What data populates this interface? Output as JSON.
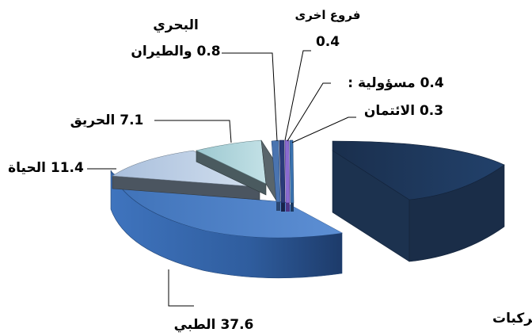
{
  "chart_data": {
    "type": "pie",
    "style": "3d-exploded",
    "slices": [
      {
        "key": "vehicles",
        "label": "المركبات",
        "value": 42,
        "value_text": "42",
        "color": "#1b3150"
      },
      {
        "key": "medical",
        "label": "الطبي",
        "value": 37.6,
        "value_text": "37.6",
        "color": "#4a7cc4"
      },
      {
        "key": "life",
        "label": "الحياة",
        "value": 11.4,
        "value_text": "11.4",
        "color": "#b9cce4"
      },
      {
        "key": "fire",
        "label": "الحريق",
        "value": 7.1,
        "value_text": "7.1",
        "color": "#a6cfd6"
      },
      {
        "key": "marine",
        "label_line1": "البحري",
        "label_line2": "والطيران",
        "value": 0.8,
        "value_text": "0.8",
        "color": "#4a74b0"
      },
      {
        "key": "other",
        "label": "فروع اخرى",
        "value": 0.4,
        "value_text": "0.4",
        "color": "#1f2f6a"
      },
      {
        "key": "liability",
        "label": "مسؤولية :",
        "value": 0.4,
        "value_text": "0.4",
        "color": "#8a6ad0"
      },
      {
        "key": "credit",
        "label": "الائتمان",
        "value": 0.3,
        "value_text": "0.3",
        "color": "#2f5f8f"
      }
    ]
  }
}
